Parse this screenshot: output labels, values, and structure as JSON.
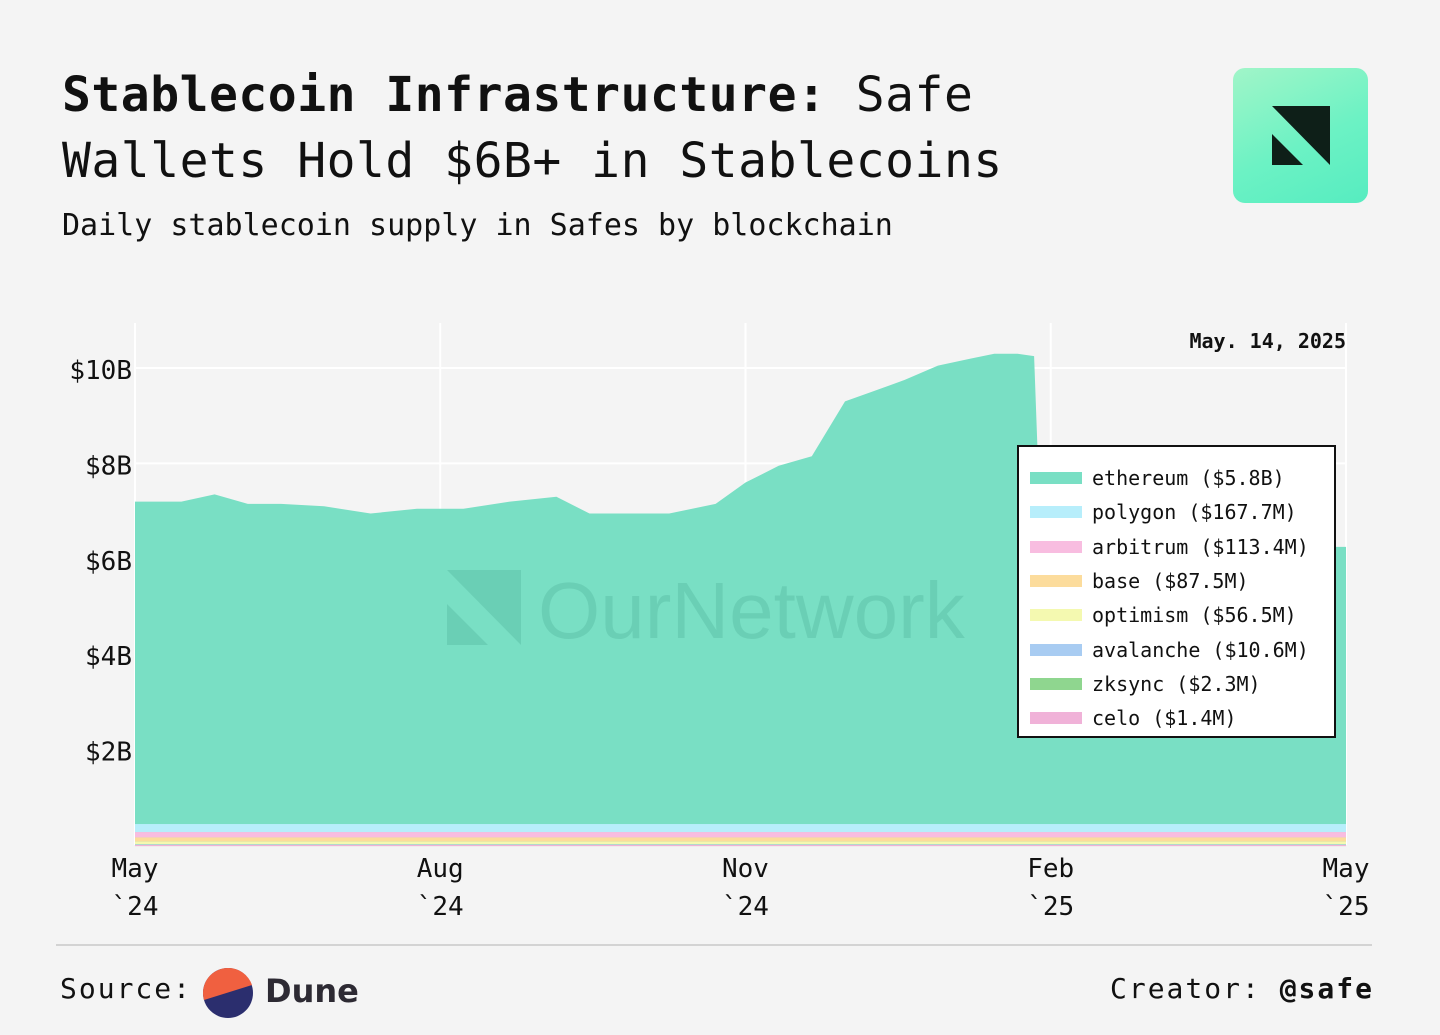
{
  "header": {
    "title_bold": "Stablecoin Infrastructure:",
    "title_rest": " Safe Wallets Hold $6B+ in Stablecoins",
    "subtitle": "Daily stablecoin supply in Safes by blockchain"
  },
  "watermark": "OurNetwork",
  "colors": {
    "background": "#f4f4f4",
    "area_fill": "#79dfc4",
    "logo_accent": "#6cf2c4"
  },
  "chart_data": {
    "type": "area",
    "stacked": true,
    "date_annotation": "May. 14, 2025",
    "x_ticks": [
      {
        "date": "2024-05-14",
        "line1": "May",
        "line2": "`24"
      },
      {
        "date": "2024-08-14",
        "line1": "Aug",
        "line2": "`24"
      },
      {
        "date": "2024-11-14",
        "line1": "Nov",
        "line2": "`24"
      },
      {
        "date": "2025-02-14",
        "line1": "Feb",
        "line2": "`25"
      },
      {
        "date": "2025-05-14",
        "line1": "May",
        "line2": "`25"
      }
    ],
    "y_ticks": [
      {
        "value": 2,
        "label": "$2B"
      },
      {
        "value": 4,
        "label": "$4B"
      },
      {
        "value": 6,
        "label": "$6B"
      },
      {
        "value": 8,
        "label": "$8B"
      },
      {
        "value": 10,
        "label": "$10B"
      }
    ],
    "ylim": [
      0,
      11
    ],
    "xlim": [
      "2024-05-14",
      "2025-05-14"
    ],
    "grid": true,
    "legend_position": "right",
    "x": [
      "2024-05-14",
      "2024-05-28",
      "2024-06-07",
      "2024-06-17",
      "2024-06-27",
      "2024-07-10",
      "2024-07-24",
      "2024-08-07",
      "2024-08-21",
      "2024-09-04",
      "2024-09-18",
      "2024-09-28",
      "2024-10-08",
      "2024-10-22",
      "2024-11-05",
      "2024-11-14",
      "2024-11-24",
      "2024-12-04",
      "2024-12-14",
      "2024-12-18",
      "2024-12-22",
      "2025-01-01",
      "2025-01-11",
      "2025-01-21",
      "2025-01-28",
      "2025-02-04",
      "2025-02-09",
      "2025-02-11",
      "2025-02-13",
      "2025-03-01",
      "2025-04-01",
      "2025-05-14"
    ],
    "total_billions": [
      7.2,
      7.2,
      7.35,
      7.15,
      7.15,
      7.1,
      6.95,
      7.05,
      7.05,
      7.2,
      7.3,
      6.95,
      6.95,
      6.95,
      7.15,
      7.6,
      7.95,
      8.15,
      9.3,
      9.4,
      9.5,
      9.75,
      10.05,
      10.2,
      10.3,
      10.3,
      10.25,
      6.4,
      6.3,
      6.3,
      6.25,
      6.25
    ],
    "series": [
      {
        "name": "ethereum",
        "label": "ethereum ($5.8B)",
        "color": "#79dfc4",
        "latest_billions": 5.8
      },
      {
        "name": "polygon",
        "label": "polygon ($167.7M)",
        "color": "#b7eefb",
        "latest_billions": 0.1677
      },
      {
        "name": "arbitrum",
        "label": "arbitrum ($113.4M)",
        "color": "#f8bde0",
        "latest_billions": 0.1134
      },
      {
        "name": "base",
        "label": "base ($87.5M)",
        "color": "#fcdc9c",
        "latest_billions": 0.0875
      },
      {
        "name": "optimism",
        "label": "optimism ($56.5M)",
        "color": "#f4f9b0",
        "latest_billions": 0.0565
      },
      {
        "name": "avalanche",
        "label": "avalanche ($10.6M)",
        "color": "#a8ccf2",
        "latest_billions": 0.0106
      },
      {
        "name": "zksync",
        "label": "zksync ($2.3M)",
        "color": "#8fd68f",
        "latest_billions": 0.0023
      },
      {
        "name": "celo",
        "label": "celo ($1.4M)",
        "color": "#f0b2d8",
        "latest_billions": 0.0014
      }
    ]
  },
  "footer": {
    "source_label": "Source:",
    "source_name": "Dune",
    "creator_label": "Creator:",
    "creator_handle": "@safe"
  }
}
